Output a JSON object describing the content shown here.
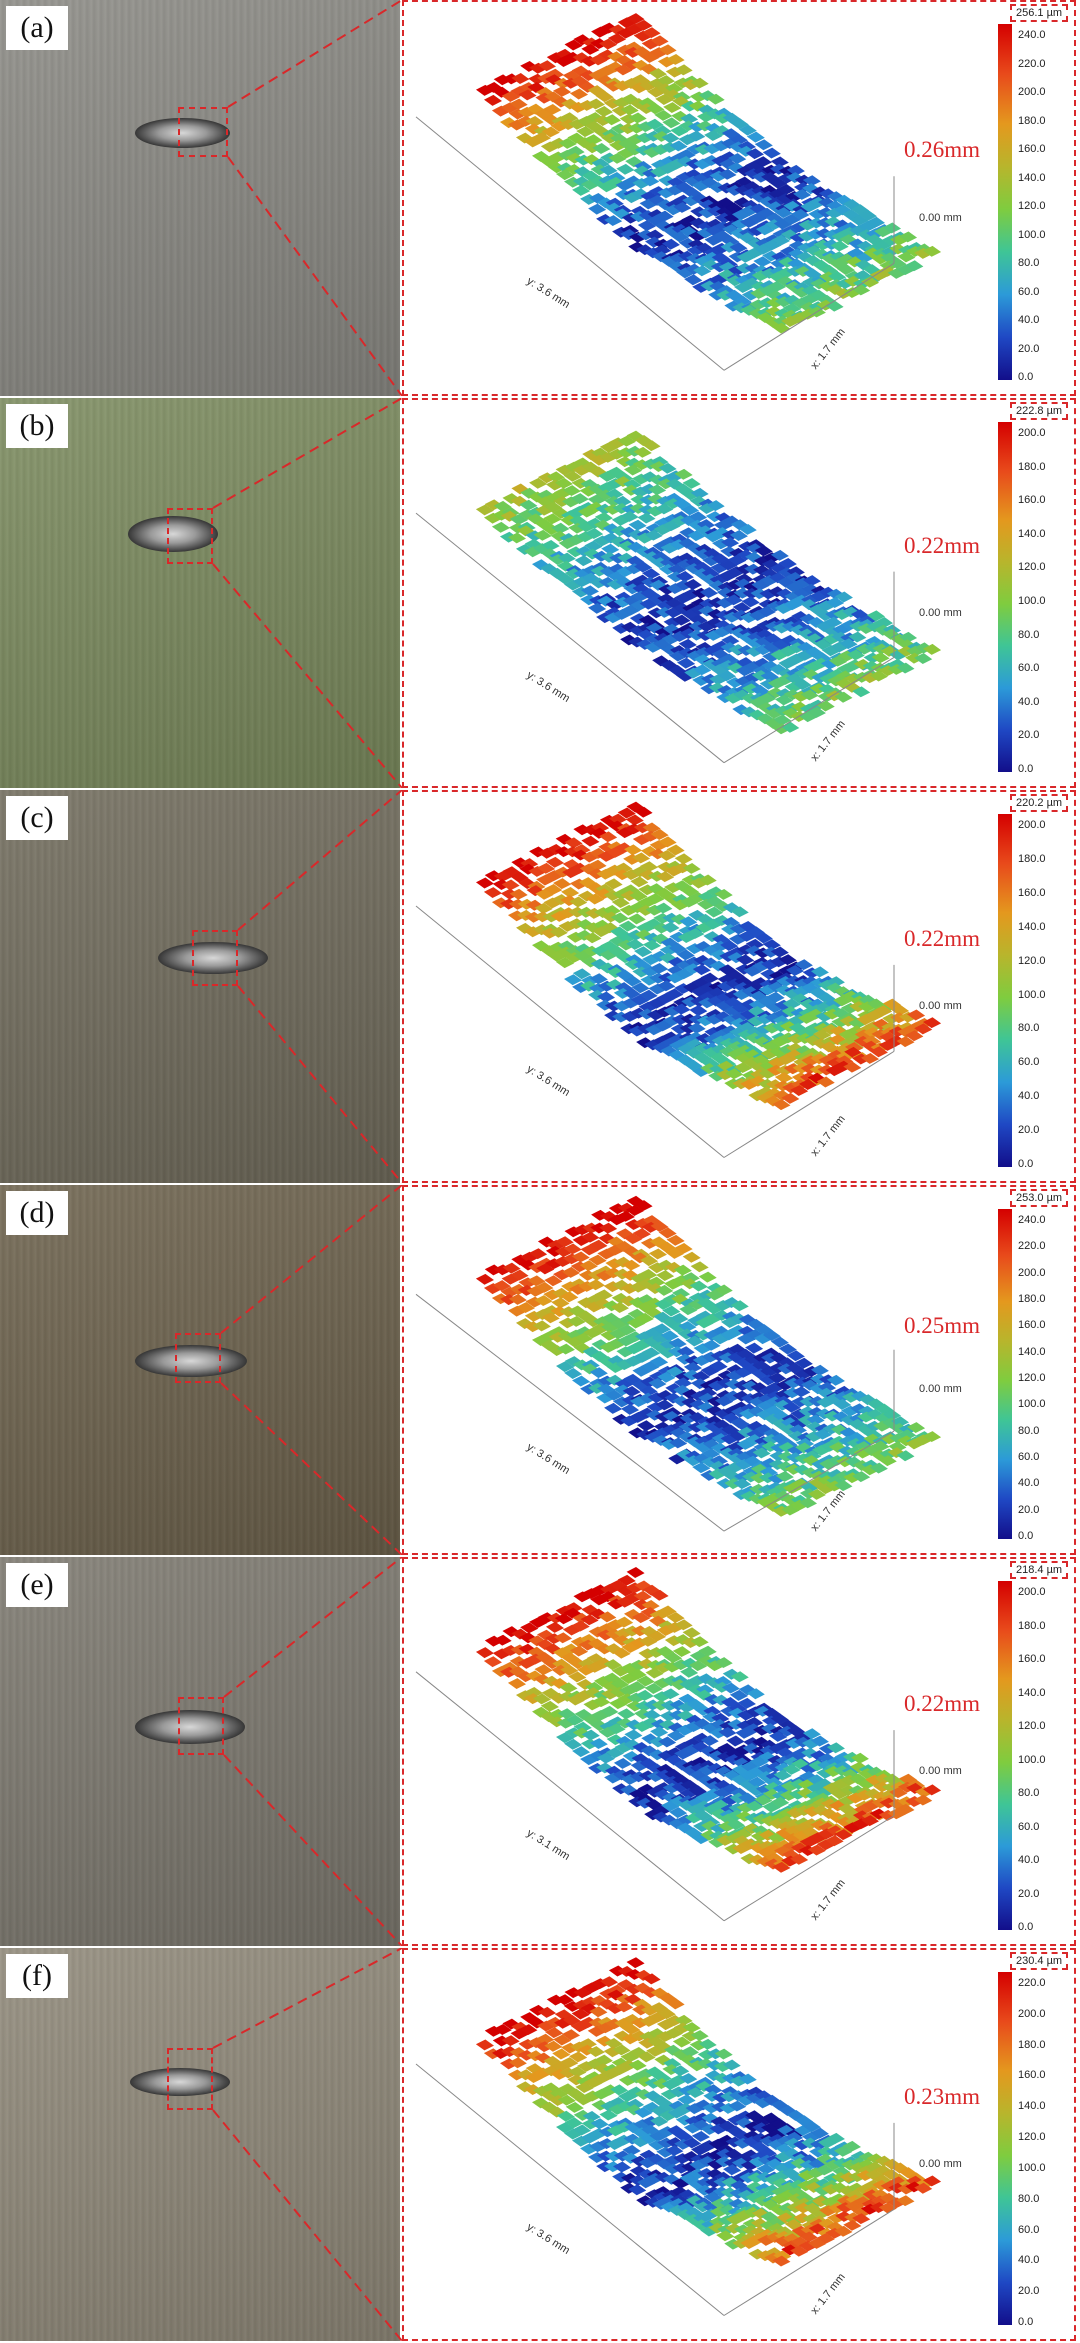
{
  "panels": [
    {
      "label": "(a)",
      "max": "256.1 µm",
      "depth": "0.26mm",
      "y_axis": "y: 3.6 mm",
      "x_axis": "x: 1.7 mm",
      "zero": "0.00 mm",
      "ticks": [
        "240.0",
        "220.0",
        "200.0",
        "180.0",
        "160.0",
        "140.0",
        "120.0",
        "100.0",
        "80.0",
        "60.0",
        "40.0",
        "20.0",
        "0.0"
      ],
      "photo_color": "#8a8983",
      "hi_top": true,
      "hi_bottom": false
    },
    {
      "label": "(b)",
      "max": "222.8 µm",
      "depth": "0.22mm",
      "y_axis": "y: 3.6 mm",
      "x_axis": "x: 1.7 mm",
      "zero": "0.00 mm",
      "ticks": [
        "200.0",
        "180.0",
        "160.0",
        "140.0",
        "120.0",
        "100.0",
        "80.0",
        "60.0",
        "40.0",
        "20.0",
        "0.0"
      ],
      "photo_color": "#7a8a5c",
      "hi_top": false,
      "hi_bottom": false
    },
    {
      "label": "(c)",
      "max": "220.2 µm",
      "depth": "0.22mm",
      "y_axis": "y: 3.6 mm",
      "x_axis": "x: 1.7 mm",
      "zero": "0.00 mm",
      "ticks": [
        "200.0",
        "180.0",
        "160.0",
        "140.0",
        "120.0",
        "100.0",
        "80.0",
        "60.0",
        "40.0",
        "20.0",
        "0.0"
      ],
      "photo_color": "#6f6a5a",
      "hi_top": true,
      "hi_bottom": true
    },
    {
      "label": "(d)",
      "max": "253.0 µm",
      "depth": "0.25mm",
      "y_axis": "y: 3.6 mm",
      "x_axis": "x: 1.7 mm",
      "zero": "0.00 mm",
      "ticks": [
        "240.0",
        "220.0",
        "200.0",
        "180.0",
        "160.0",
        "140.0",
        "120.0",
        "100.0",
        "80.0",
        "60.0",
        "40.0",
        "20.0",
        "0.0"
      ],
      "photo_color": "#6b604a",
      "hi_top": true,
      "hi_bottom": false
    },
    {
      "label": "(e)",
      "max": "218.4 µm",
      "depth": "0.22mm",
      "y_axis": "y: 3.1 mm",
      "x_axis": "x: 1.7 mm",
      "zero": "0.00 mm",
      "ticks": [
        "200.0",
        "180.0",
        "160.0",
        "140.0",
        "120.0",
        "100.0",
        "80.0",
        "60.0",
        "40.0",
        "20.0",
        "0.0"
      ],
      "photo_color": "#7b776d",
      "hi_top": true,
      "hi_bottom": true
    },
    {
      "label": "(f)",
      "max": "230.4 µm",
      "depth": "0.23mm",
      "y_axis": "y: 3.6 mm",
      "x_axis": "x: 1.7 mm",
      "zero": "0.00 mm",
      "ticks": [
        "220.0",
        "200.0",
        "180.0",
        "160.0",
        "140.0",
        "120.0",
        "100.0",
        "80.0",
        "60.0",
        "40.0",
        "20.0",
        "0.0"
      ],
      "photo_color": "#8f8878",
      "hi_top": true,
      "hi_bottom": true
    }
  ]
}
